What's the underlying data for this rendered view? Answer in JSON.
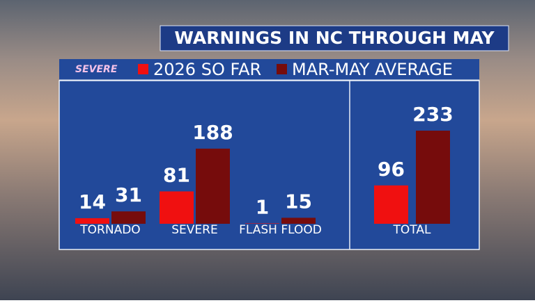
{
  "logo": "SEVERE",
  "chart_data": {
    "type": "bar",
    "title": "WARNINGS IN NC THROUGH MAY",
    "categories": [
      "TORNADO",
      "SEVERE",
      "FLASH FLOOD",
      "TOTAL"
    ],
    "series": [
      {
        "name": "2026 SO FAR",
        "color": "#f01010",
        "values": [
          14,
          81,
          1,
          96
        ]
      },
      {
        "name": "MAR-MAY AVERAGE",
        "color": "#760c0c",
        "values": [
          31,
          188,
          15,
          233
        ]
      }
    ]
  }
}
